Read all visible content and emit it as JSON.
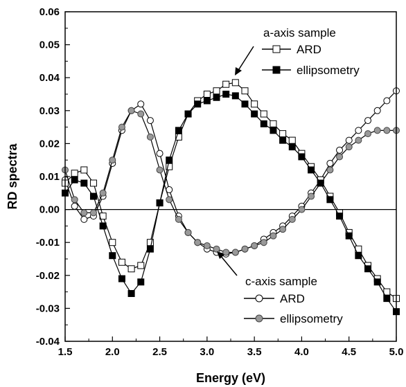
{
  "chart_data": {
    "type": "line",
    "xlabel": "Energy (eV)",
    "ylabel": "RD spectra",
    "xlim": [
      1.5,
      5.0
    ],
    "ylim": [
      -0.04,
      0.06
    ],
    "xticks": [
      "1.5",
      "2.0",
      "2.5",
      "3.0",
      "3.5",
      "4.0",
      "4.5",
      "5.0"
    ],
    "yticks": [
      "-0.04",
      "-0.03",
      "-0.02",
      "-0.01",
      "0.00",
      "0.01",
      "0.02",
      "0.03",
      "0.04",
      "0.05",
      "0.06"
    ],
    "zero_line": true,
    "legend_groups": [
      {
        "title": "a-axis sample",
        "entries": [
          "ARD",
          "ellipsometry"
        ]
      },
      {
        "title": "c-axis sample",
        "entries": [
          "ARD",
          "ellipsometry"
        ]
      }
    ],
    "series": [
      {
        "name": "ARD",
        "group": "a-axis sample",
        "marker": "open-square",
        "points": [
          [
            1.5,
            0.008
          ],
          [
            1.6,
            0.011
          ],
          [
            1.7,
            0.012
          ],
          [
            1.8,
            0.008
          ],
          [
            1.9,
            -0.002
          ],
          [
            2.0,
            -0.01
          ],
          [
            2.1,
            -0.016
          ],
          [
            2.2,
            -0.018
          ],
          [
            2.3,
            -0.017
          ],
          [
            2.4,
            -0.01
          ],
          [
            2.5,
            0.002
          ],
          [
            2.6,
            0.013
          ],
          [
            2.7,
            0.022
          ],
          [
            2.8,
            0.029
          ],
          [
            2.9,
            0.033
          ],
          [
            3.0,
            0.035
          ],
          [
            3.1,
            0.036
          ],
          [
            3.2,
            0.038
          ],
          [
            3.3,
            0.0385
          ],
          [
            3.4,
            0.036
          ],
          [
            3.5,
            0.032
          ],
          [
            3.6,
            0.029
          ],
          [
            3.7,
            0.026
          ],
          [
            3.8,
            0.023
          ],
          [
            3.9,
            0.021
          ],
          [
            4.0,
            0.017
          ],
          [
            4.1,
            0.013
          ],
          [
            4.2,
            0.009
          ],
          [
            4.3,
            0.004
          ],
          [
            4.4,
            -0.001
          ],
          [
            4.5,
            -0.007
          ],
          [
            4.6,
            -0.012
          ],
          [
            4.7,
            -0.017
          ],
          [
            4.8,
            -0.021
          ],
          [
            4.9,
            -0.025
          ],
          [
            5.0,
            -0.027
          ]
        ]
      },
      {
        "name": "ellipsometry",
        "group": "a-axis sample",
        "marker": "filled-square",
        "points": [
          [
            1.5,
            0.005
          ],
          [
            1.6,
            0.009
          ],
          [
            1.7,
            0.008
          ],
          [
            1.8,
            0.004
          ],
          [
            1.9,
            -0.005
          ],
          [
            2.0,
            -0.014
          ],
          [
            2.1,
            -0.021
          ],
          [
            2.2,
            -0.0255
          ],
          [
            2.3,
            -0.022
          ],
          [
            2.4,
            -0.012
          ],
          [
            2.5,
            0.002
          ],
          [
            2.6,
            0.015
          ],
          [
            2.7,
            0.024
          ],
          [
            2.8,
            0.029
          ],
          [
            2.9,
            0.032
          ],
          [
            3.0,
            0.033
          ],
          [
            3.1,
            0.034
          ],
          [
            3.2,
            0.035
          ],
          [
            3.3,
            0.0345
          ],
          [
            3.4,
            0.032
          ],
          [
            3.5,
            0.029
          ],
          [
            3.6,
            0.026
          ],
          [
            3.7,
            0.024
          ],
          [
            3.8,
            0.021
          ],
          [
            3.9,
            0.019
          ],
          [
            4.0,
            0.016
          ],
          [
            4.1,
            0.012
          ],
          [
            4.2,
            0.008
          ],
          [
            4.3,
            0.003
          ],
          [
            4.4,
            -0.002
          ],
          [
            4.5,
            -0.008
          ],
          [
            4.6,
            -0.014
          ],
          [
            4.7,
            -0.018
          ],
          [
            4.8,
            -0.022
          ],
          [
            4.9,
            -0.027
          ],
          [
            5.0,
            -0.031
          ]
        ]
      },
      {
        "name": "ARD",
        "group": "c-axis sample",
        "marker": "open-circle",
        "points": [
          [
            1.5,
            0.009
          ],
          [
            1.6,
            0.001
          ],
          [
            1.7,
            -0.003
          ],
          [
            1.8,
            -0.002
          ],
          [
            1.9,
            0.004
          ],
          [
            2.0,
            0.014
          ],
          [
            2.1,
            0.024
          ],
          [
            2.2,
            0.03
          ],
          [
            2.3,
            0.032
          ],
          [
            2.4,
            0.027
          ],
          [
            2.5,
            0.017
          ],
          [
            2.6,
            0.006
          ],
          [
            2.7,
            -0.002
          ],
          [
            2.8,
            -0.007
          ],
          [
            2.9,
            -0.01
          ],
          [
            3.0,
            -0.012
          ],
          [
            3.1,
            -0.013
          ],
          [
            3.2,
            -0.0135
          ],
          [
            3.3,
            -0.013
          ],
          [
            3.4,
            -0.012
          ],
          [
            3.5,
            -0.011
          ],
          [
            3.6,
            -0.009
          ],
          [
            3.7,
            -0.007
          ],
          [
            3.8,
            -0.005
          ],
          [
            3.9,
            -0.002
          ],
          [
            4.0,
            0.001
          ],
          [
            4.1,
            0.005
          ],
          [
            4.2,
            0.009
          ],
          [
            4.3,
            0.014
          ],
          [
            4.4,
            0.018
          ],
          [
            4.5,
            0.021
          ],
          [
            4.6,
            0.024
          ],
          [
            4.7,
            0.027
          ],
          [
            4.8,
            0.03
          ],
          [
            4.9,
            0.033
          ],
          [
            5.0,
            0.036
          ]
        ]
      },
      {
        "name": "ellipsometry",
        "group": "c-axis sample",
        "marker": "filled-circle",
        "points": [
          [
            1.5,
            0.012
          ],
          [
            1.6,
            0.003
          ],
          [
            1.7,
            -0.001
          ],
          [
            1.8,
            -0.001
          ],
          [
            1.9,
            0.005
          ],
          [
            2.0,
            0.015
          ],
          [
            2.1,
            0.025
          ],
          [
            2.2,
            0.03
          ],
          [
            2.3,
            0.029
          ],
          [
            2.4,
            0.022
          ],
          [
            2.5,
            0.012
          ],
          [
            2.6,
            0.003
          ],
          [
            2.7,
            -0.003
          ],
          [
            2.8,
            -0.007
          ],
          [
            2.9,
            -0.01
          ],
          [
            3.0,
            -0.011
          ],
          [
            3.1,
            -0.012
          ],
          [
            3.2,
            -0.013
          ],
          [
            3.3,
            -0.013
          ],
          [
            3.4,
            -0.012
          ],
          [
            3.5,
            -0.011
          ],
          [
            3.6,
            -0.01
          ],
          [
            3.7,
            -0.008
          ],
          [
            3.8,
            -0.006
          ],
          [
            3.9,
            -0.003
          ],
          [
            4.0,
            0.0
          ],
          [
            4.1,
            0.004
          ],
          [
            4.2,
            0.008
          ],
          [
            4.3,
            0.012
          ],
          [
            4.4,
            0.016
          ],
          [
            4.5,
            0.019
          ],
          [
            4.6,
            0.021
          ],
          [
            4.7,
            0.023
          ],
          [
            4.8,
            0.024
          ],
          [
            4.9,
            0.024
          ],
          [
            5.0,
            0.024
          ]
        ]
      }
    ]
  }
}
